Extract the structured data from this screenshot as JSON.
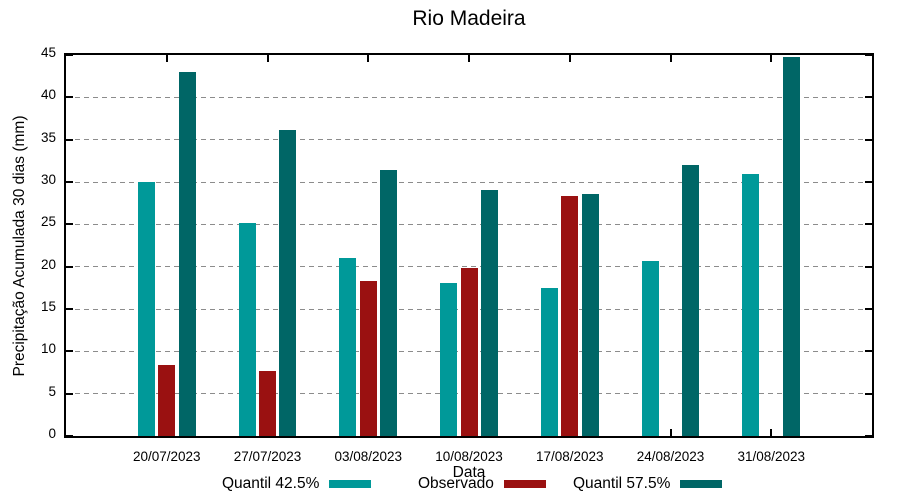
{
  "chart_data": {
    "type": "bar",
    "title": "Rio Madeira",
    "xlabel": "Data",
    "ylabel": "Precipitação Acumulada 30 dias (mm)",
    "ylim": [
      0,
      45
    ],
    "ytick_step": 5,
    "grid": "horizontal-dashed",
    "grid_color": "#8c8c8c",
    "legend_position": "below",
    "categories": [
      "20/07/2023",
      "27/07/2023",
      "03/08/2023",
      "10/08/2023",
      "17/08/2023",
      "24/08/2023",
      "31/08/2023"
    ],
    "series": [
      {
        "name": "Quantil 42.5%",
        "color": "#009999",
        "values": [
          30.0,
          25.2,
          21.0,
          18.1,
          17.5,
          20.7,
          31.0
        ]
      },
      {
        "name": "Observado",
        "color": "#9a1111",
        "values": [
          8.4,
          7.7,
          18.3,
          19.9,
          28.3,
          null,
          null
        ]
      },
      {
        "name": "Quantil 57.5%",
        "color": "#006666",
        "values": [
          43.0,
          36.1,
          31.4,
          29.0,
          28.6,
          32.0,
          44.8
        ]
      }
    ]
  }
}
